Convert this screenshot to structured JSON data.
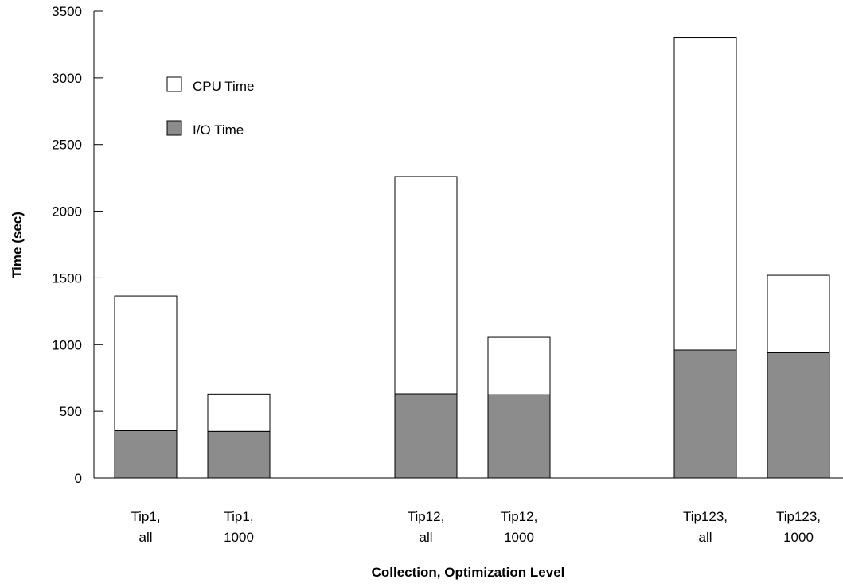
{
  "chart_data": {
    "type": "bar",
    "stacked": true,
    "categories": [
      [
        "Tip1,",
        "all"
      ],
      [
        "Tip1,",
        "1000"
      ],
      [
        "Tip12,",
        "all"
      ],
      [
        "Tip12,",
        "1000"
      ],
      [
        "Tip123,",
        "all"
      ],
      [
        "Tip123,",
        "1000"
      ]
    ],
    "series": [
      {
        "name": "I/O Time",
        "color": "#8c8c8c",
        "values": [
          355,
          350,
          632,
          625,
          960,
          940
        ]
      },
      {
        "name": "CPU Time",
        "color": "#ffffff",
        "values": [
          1010,
          280,
          1628,
          430,
          2340,
          580
        ]
      }
    ],
    "totals": [
      1365,
      630,
      2260,
      1055,
      3300,
      1520
    ],
    "xlabel": "Collection, Optimization Level",
    "ylabel": "Time (sec)",
    "ylim": [
      0,
      3500
    ],
    "yticks": [
      0,
      500,
      1000,
      1500,
      2000,
      2500,
      3000,
      3500
    ],
    "grid": false,
    "legend": {
      "placement": "top-left",
      "order": [
        "CPU Time",
        "I/O Time"
      ]
    }
  }
}
